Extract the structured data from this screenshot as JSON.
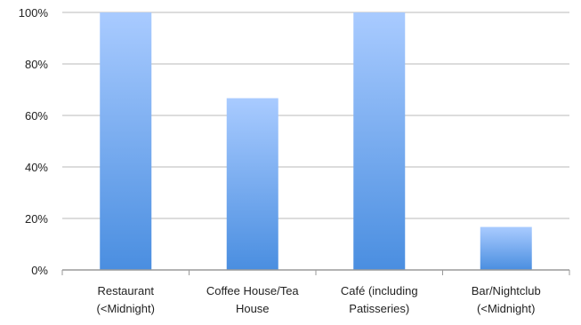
{
  "chart_data": {
    "type": "bar",
    "categories": [
      [
        "Restaurant",
        "(<Midnight)"
      ],
      [
        "Coffee House/Tea",
        "House"
      ],
      [
        "Café (including",
        "Patisseries)"
      ],
      [
        "Bar/Nightclub",
        "(<Midnight)"
      ]
    ],
    "values": [
      100,
      66.7,
      100,
      16.7
    ],
    "yticks": [
      "0%",
      "20%",
      "40%",
      "60%",
      "80%",
      "100%"
    ],
    "ylim": [
      0,
      100
    ],
    "grid": true,
    "legend": "none",
    "colors": {
      "bar_top": "#a9cbff",
      "bar_bottom": "#4a8ee0",
      "grid": "#b8b8b8",
      "axis": "#9a9a9a",
      "text": "#222222"
    }
  }
}
